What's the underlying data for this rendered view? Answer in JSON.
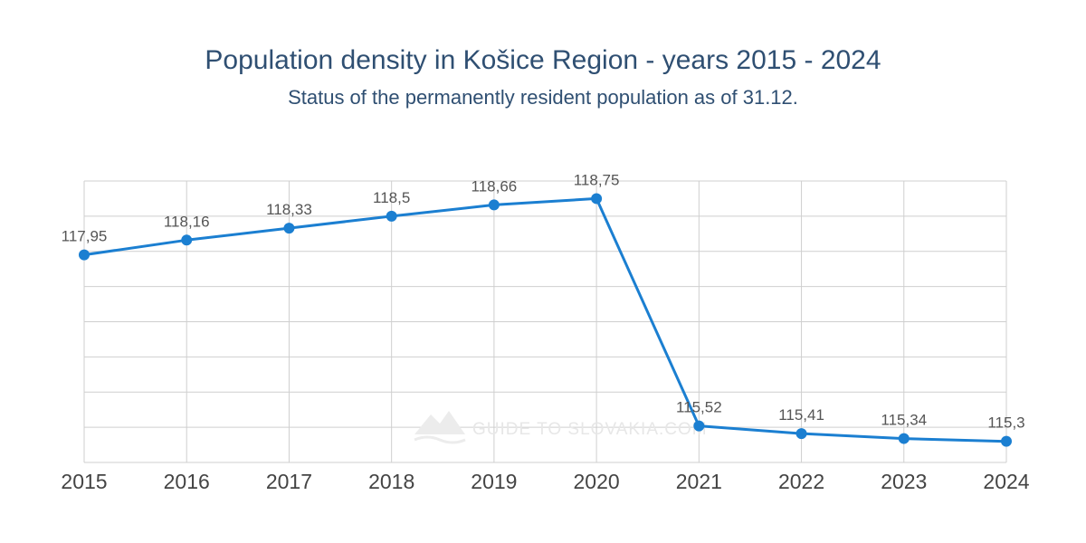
{
  "chart_data": {
    "type": "line",
    "title": "Population density in Košice Region - years 2015 - 2024",
    "subtitle": "Status of the permanently resident population as of 31.12.",
    "categories": [
      "2015",
      "2016",
      "2017",
      "2018",
      "2019",
      "2020",
      "2021",
      "2022",
      "2023",
      "2024"
    ],
    "series": [
      {
        "values": [
          117.95,
          118.16,
          118.33,
          118.5,
          118.66,
          118.75,
          115.52,
          115.41,
          115.34,
          115.3
        ],
        "labels": [
          "117,95",
          "118,16",
          "118,33",
          "118,5",
          "118,66",
          "118,75",
          "115,52",
          "115,41",
          "115,34",
          "115,3"
        ],
        "color": "#1b7fd1"
      }
    ],
    "ylim": [
      115.0,
      119.0
    ],
    "grid": true,
    "legend": "none"
  },
  "watermark": {
    "text": "GUIDE TO SLOVAKIA.COM",
    "icon": "mountain-logo-icon"
  }
}
